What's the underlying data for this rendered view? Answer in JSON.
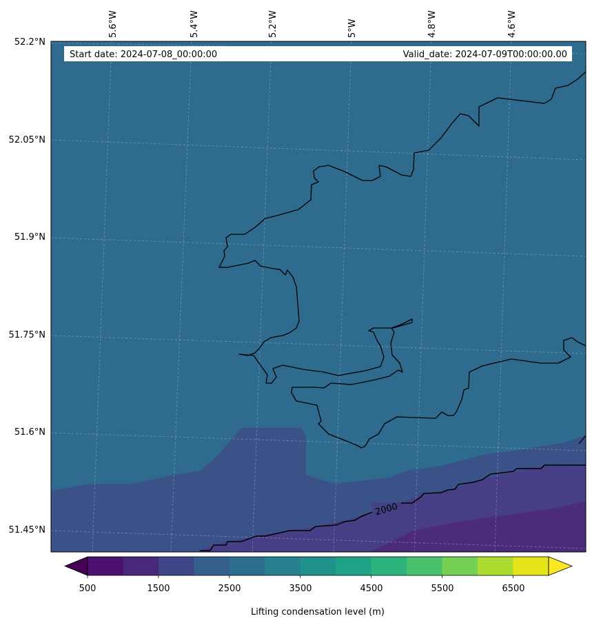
{
  "header": {
    "start_date": "Start date: 2024-07-08_00:00:00",
    "valid_date": "Valid_date: 2024-07-09T00:00:00.00"
  },
  "map": {
    "lon_labels": [
      "5.6°W",
      "5.4°W",
      "5.2°W",
      "5°W",
      "4.8°W",
      "4.6°W"
    ],
    "lat_labels": [
      "52.2°N",
      "52.05°N",
      "51.9°N",
      "51.75°N",
      "51.6°N",
      "51.45°N"
    ],
    "contour_label": "2000",
    "field_colors": {
      "background": "#2f6b8e",
      "band_2000_2500": "#3b5289",
      "band_1500_2000": "#463f85",
      "band_1000_1500": "#4c2c7a"
    }
  },
  "colorbar": {
    "title": "Lifting condensation level (m)",
    "tick_labels": [
      "500",
      "1500",
      "2500",
      "3500",
      "4500",
      "5500",
      "6500"
    ],
    "colors": [
      "#440154",
      "#4b1070",
      "#482878",
      "#3f4688",
      "#355f8d",
      "#2e6e8e",
      "#27808e",
      "#21918c",
      "#1fa187",
      "#2db27d",
      "#4ac16d",
      "#75d054",
      "#addc30",
      "#e4e419",
      "#fde725"
    ]
  }
}
